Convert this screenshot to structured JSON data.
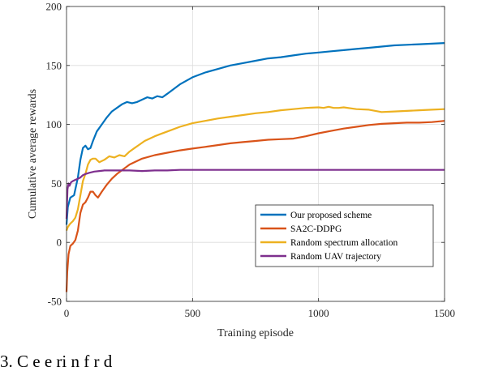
{
  "chart_data": {
    "type": "line",
    "title": "",
    "xlabel": "Training episode",
    "ylabel": "Cumulative average rewards",
    "xlim": [
      0,
      1500
    ],
    "ylim": [
      -50,
      200
    ],
    "xticks": [
      0,
      500,
      1000,
      1500
    ],
    "yticks": [
      -50,
      0,
      50,
      100,
      150,
      200
    ],
    "grid": true,
    "legend_position": "bottom-right",
    "series": [
      {
        "name": "Our proposed scheme",
        "color": "#0072BD",
        "x": [
          0,
          5,
          15,
          30,
          45,
          55,
          65,
          75,
          85,
          95,
          105,
          120,
          140,
          160,
          180,
          200,
          220,
          240,
          260,
          280,
          300,
          320,
          340,
          360,
          380,
          400,
          450,
          500,
          550,
          600,
          650,
          700,
          750,
          800,
          850,
          900,
          950,
          1000,
          1050,
          1100,
          1150,
          1200,
          1250,
          1300,
          1350,
          1400,
          1450,
          1500
        ],
        "y": [
          15,
          30,
          38,
          40,
          55,
          70,
          80,
          82,
          79,
          80,
          86,
          94,
          100,
          106,
          111,
          114,
          117,
          119,
          118,
          119,
          121,
          123,
          122,
          124,
          123,
          126,
          134,
          140,
          144,
          147,
          150,
          152,
          154,
          156,
          157,
          158.5,
          160,
          161,
          162,
          163,
          164,
          165,
          166,
          167,
          167.5,
          168,
          168.5,
          169
        ]
      },
      {
        "name": "SA2C-DDPG",
        "color": "#D95319",
        "x": [
          0,
          3,
          8,
          15,
          25,
          35,
          45,
          55,
          65,
          75,
          85,
          95,
          105,
          115,
          125,
          140,
          160,
          180,
          200,
          250,
          300,
          350,
          400,
          450,
          500,
          550,
          600,
          650,
          700,
          750,
          800,
          850,
          900,
          950,
          1000,
          1050,
          1100,
          1150,
          1200,
          1250,
          1300,
          1350,
          1400,
          1450,
          1500
        ],
        "y": [
          -42,
          -25,
          -10,
          -3,
          -1,
          2,
          10,
          25,
          32,
          34,
          38,
          43,
          43,
          40,
          38,
          43,
          49,
          54,
          58,
          66,
          71,
          74,
          76,
          78,
          79.5,
          81,
          82.5,
          84,
          85,
          86,
          87,
          87.5,
          88,
          90,
          92.5,
          94.5,
          96.5,
          98,
          99.5,
          100.5,
          101,
          101.5,
          101.5,
          102,
          103
        ]
      },
      {
        "name": "Random spectrum allocation",
        "color": "#EDB120",
        "x": [
          0,
          5,
          15,
          25,
          35,
          45,
          55,
          65,
          75,
          85,
          95,
          105,
          115,
          130,
          150,
          170,
          190,
          210,
          230,
          250,
          270,
          290,
          310,
          330,
          350,
          375,
          400,
          450,
          500,
          550,
          600,
          650,
          700,
          750,
          800,
          850,
          900,
          950,
          1000,
          1020,
          1040,
          1060,
          1080,
          1100,
          1150,
          1200,
          1250,
          1300,
          1350,
          1400,
          1450,
          1500
        ],
        "y": [
          10,
          13,
          16,
          18,
          21,
          28,
          40,
          52,
          58,
          66,
          70,
          71,
          71,
          68,
          70,
          73,
          72,
          74,
          73,
          77,
          80,
          83,
          86,
          88,
          90,
          92,
          94,
          98,
          101,
          103,
          105,
          106.5,
          108,
          109.5,
          110.5,
          112,
          113,
          114,
          114.5,
          114,
          115,
          114,
          114,
          114.5,
          113,
          112.5,
          110.5,
          111,
          111.5,
          112,
          112.5,
          113
        ]
      },
      {
        "name": "Random UAV trajectory",
        "color": "#7E2F8E",
        "x": [
          0,
          4,
          8,
          12,
          18,
          25,
          35,
          45,
          55,
          65,
          75,
          90,
          110,
          130,
          150,
          170,
          200,
          250,
          300,
          350,
          400,
          450,
          500,
          600,
          700,
          800,
          900,
          1000,
          1100,
          1200,
          1300,
          1400,
          1500
        ],
        "y": [
          20,
          45,
          50,
          48,
          51,
          52,
          53,
          54,
          55,
          57,
          58,
          59,
          60,
          60.5,
          61,
          61,
          61,
          61,
          60.5,
          61,
          61,
          61.5,
          61.5,
          61.5,
          61.5,
          61.5,
          61.5,
          61.5,
          61.5,
          61.5,
          61.5,
          61.5,
          61.5
        ]
      }
    ]
  },
  "caption": {
    "text": "3. C     e   e ri  n  f   r      d   "
  }
}
